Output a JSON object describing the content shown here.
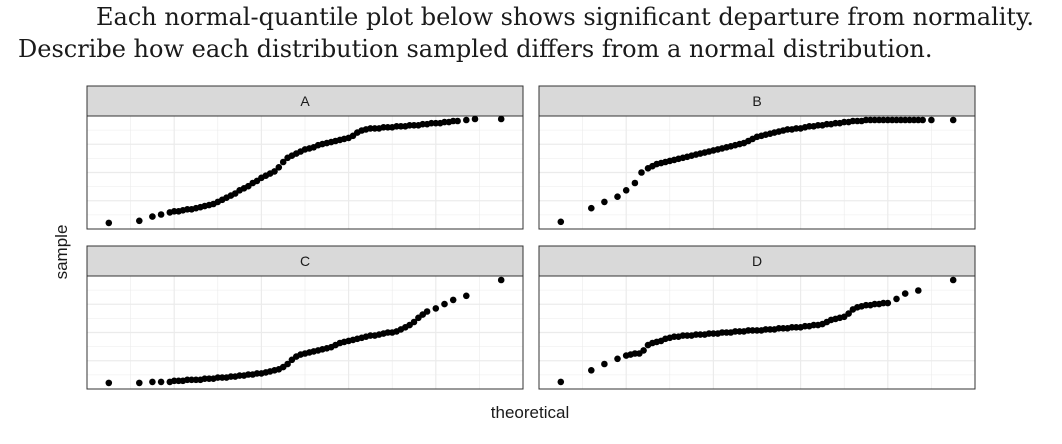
{
  "question": {
    "line1": "Each normal-quantile plot below shows significant departure from normality.",
    "line2": "Describe how each distribution sampled differs from a normal distribution."
  },
  "colors": {
    "point": "#000000",
    "strip_fill": "#d9d9d9",
    "grid": "#ebebeb",
    "frame": "#333333"
  },
  "chart_data": {
    "type": "scatter",
    "facet_layout": "2x2",
    "xlabel": "theoretical",
    "ylabel": "sample",
    "grid": true,
    "xlim": [
      0,
      1
    ],
    "ylim": [
      0,
      1
    ],
    "panels": [
      {
        "title": "A",
        "x": [
          0.05,
          0.12,
          0.15,
          0.17,
          0.19,
          0.2,
          0.21,
          0.22,
          0.23,
          0.24,
          0.25,
          0.26,
          0.27,
          0.28,
          0.29,
          0.3,
          0.31,
          0.32,
          0.33,
          0.34,
          0.35,
          0.36,
          0.37,
          0.38,
          0.39,
          0.4,
          0.41,
          0.42,
          0.43,
          0.44,
          0.45,
          0.46,
          0.47,
          0.48,
          0.49,
          0.5,
          0.51,
          0.52,
          0.53,
          0.54,
          0.55,
          0.56,
          0.57,
          0.58,
          0.59,
          0.6,
          0.61,
          0.62,
          0.63,
          0.64,
          0.65,
          0.66,
          0.67,
          0.68,
          0.69,
          0.7,
          0.71,
          0.72,
          0.73,
          0.74,
          0.75,
          0.76,
          0.77,
          0.78,
          0.79,
          0.8,
          0.81,
          0.82,
          0.83,
          0.84,
          0.85,
          0.87,
          0.89,
          0.95
        ],
        "y": [
          0.02,
          0.04,
          0.08,
          0.1,
          0.12,
          0.13,
          0.13,
          0.14,
          0.15,
          0.15,
          0.16,
          0.17,
          0.18,
          0.19,
          0.2,
          0.22,
          0.24,
          0.26,
          0.28,
          0.3,
          0.33,
          0.35,
          0.37,
          0.4,
          0.42,
          0.45,
          0.47,
          0.49,
          0.51,
          0.55,
          0.6,
          0.64,
          0.66,
          0.68,
          0.7,
          0.72,
          0.73,
          0.74,
          0.76,
          0.77,
          0.78,
          0.79,
          0.8,
          0.81,
          0.82,
          0.83,
          0.85,
          0.88,
          0.9,
          0.91,
          0.92,
          0.92,
          0.92,
          0.93,
          0.93,
          0.93,
          0.94,
          0.94,
          0.94,
          0.95,
          0.95,
          0.95,
          0.96,
          0.96,
          0.97,
          0.97,
          0.97,
          0.98,
          0.98,
          0.99,
          0.99,
          1.0,
          1.01,
          1.01
        ]
      },
      {
        "title": "B",
        "x": [
          0.05,
          0.12,
          0.15,
          0.18,
          0.2,
          0.22,
          0.235,
          0.25,
          0.26,
          0.27,
          0.28,
          0.29,
          0.3,
          0.31,
          0.32,
          0.33,
          0.34,
          0.35,
          0.36,
          0.37,
          0.38,
          0.39,
          0.4,
          0.41,
          0.42,
          0.43,
          0.44,
          0.45,
          0.46,
          0.47,
          0.48,
          0.49,
          0.5,
          0.51,
          0.52,
          0.53,
          0.54,
          0.55,
          0.56,
          0.57,
          0.58,
          0.59,
          0.6,
          0.61,
          0.62,
          0.63,
          0.64,
          0.65,
          0.66,
          0.67,
          0.68,
          0.69,
          0.7,
          0.71,
          0.72,
          0.73,
          0.74,
          0.75,
          0.76,
          0.77,
          0.78,
          0.79,
          0.8,
          0.81,
          0.82,
          0.83,
          0.84,
          0.85,
          0.86,
          0.87,
          0.88,
          0.9,
          0.95
        ],
        "y": [
          0.03,
          0.16,
          0.22,
          0.27,
          0.33,
          0.4,
          0.5,
          0.54,
          0.56,
          0.58,
          0.59,
          0.6,
          0.61,
          0.62,
          0.63,
          0.64,
          0.65,
          0.66,
          0.67,
          0.68,
          0.69,
          0.7,
          0.71,
          0.72,
          0.73,
          0.74,
          0.75,
          0.76,
          0.77,
          0.78,
          0.8,
          0.82,
          0.84,
          0.85,
          0.86,
          0.87,
          0.88,
          0.89,
          0.9,
          0.91,
          0.91,
          0.92,
          0.92,
          0.93,
          0.94,
          0.94,
          0.95,
          0.95,
          0.96,
          0.96,
          0.97,
          0.97,
          0.98,
          0.98,
          0.99,
          0.99,
          0.99,
          1.0,
          1.0,
          1.0,
          1.0,
          1.0,
          1.0,
          1.0,
          1.0,
          1.0,
          1.0,
          1.0,
          1.0,
          1.0,
          1.0,
          1.0,
          1.0
        ]
      },
      {
        "title": "C",
        "x": [
          0.05,
          0.12,
          0.15,
          0.17,
          0.19,
          0.2,
          0.21,
          0.22,
          0.23,
          0.24,
          0.25,
          0.26,
          0.27,
          0.28,
          0.29,
          0.3,
          0.31,
          0.32,
          0.33,
          0.34,
          0.35,
          0.36,
          0.37,
          0.38,
          0.39,
          0.4,
          0.41,
          0.42,
          0.43,
          0.44,
          0.45,
          0.46,
          0.47,
          0.48,
          0.49,
          0.5,
          0.51,
          0.52,
          0.53,
          0.54,
          0.55,
          0.56,
          0.57,
          0.58,
          0.59,
          0.6,
          0.61,
          0.62,
          0.63,
          0.64,
          0.65,
          0.66,
          0.67,
          0.68,
          0.69,
          0.7,
          0.71,
          0.72,
          0.73,
          0.74,
          0.75,
          0.76,
          0.77,
          0.78,
          0.8,
          0.82,
          0.84,
          0.87,
          0.95
        ],
        "y": [
          0.02,
          0.02,
          0.03,
          0.03,
          0.03,
          0.04,
          0.04,
          0.04,
          0.05,
          0.05,
          0.05,
          0.05,
          0.06,
          0.06,
          0.06,
          0.07,
          0.07,
          0.07,
          0.08,
          0.08,
          0.09,
          0.09,
          0.1,
          0.1,
          0.11,
          0.11,
          0.12,
          0.13,
          0.14,
          0.15,
          0.17,
          0.2,
          0.24,
          0.27,
          0.29,
          0.3,
          0.31,
          0.32,
          0.33,
          0.34,
          0.35,
          0.36,
          0.38,
          0.4,
          0.41,
          0.42,
          0.43,
          0.44,
          0.45,
          0.46,
          0.47,
          0.47,
          0.48,
          0.49,
          0.5,
          0.5,
          0.51,
          0.53,
          0.55,
          0.57,
          0.6,
          0.64,
          0.67,
          0.7,
          0.73,
          0.77,
          0.81,
          0.85,
          1.0
        ]
      },
      {
        "title": "D",
        "x": [
          0.05,
          0.12,
          0.15,
          0.18,
          0.2,
          0.21,
          0.22,
          0.23,
          0.24,
          0.25,
          0.26,
          0.27,
          0.28,
          0.29,
          0.3,
          0.31,
          0.32,
          0.33,
          0.34,
          0.35,
          0.36,
          0.37,
          0.38,
          0.39,
          0.4,
          0.41,
          0.42,
          0.43,
          0.44,
          0.45,
          0.46,
          0.47,
          0.48,
          0.49,
          0.5,
          0.51,
          0.52,
          0.53,
          0.54,
          0.55,
          0.56,
          0.57,
          0.58,
          0.59,
          0.6,
          0.61,
          0.62,
          0.63,
          0.64,
          0.65,
          0.66,
          0.67,
          0.68,
          0.69,
          0.7,
          0.71,
          0.72,
          0.73,
          0.74,
          0.75,
          0.76,
          0.77,
          0.78,
          0.79,
          0.8,
          0.82,
          0.84,
          0.87,
          0.95
        ],
        "y": [
          0.03,
          0.14,
          0.2,
          0.25,
          0.28,
          0.29,
          0.3,
          0.3,
          0.33,
          0.38,
          0.4,
          0.41,
          0.42,
          0.44,
          0.45,
          0.46,
          0.46,
          0.47,
          0.47,
          0.47,
          0.48,
          0.48,
          0.48,
          0.49,
          0.49,
          0.49,
          0.5,
          0.5,
          0.5,
          0.51,
          0.51,
          0.51,
          0.52,
          0.52,
          0.52,
          0.52,
          0.53,
          0.53,
          0.53,
          0.54,
          0.54,
          0.54,
          0.55,
          0.55,
          0.55,
          0.56,
          0.56,
          0.57,
          0.57,
          0.58,
          0.6,
          0.62,
          0.63,
          0.64,
          0.65,
          0.68,
          0.72,
          0.74,
          0.75,
          0.76,
          0.76,
          0.77,
          0.77,
          0.78,
          0.78,
          0.82,
          0.87,
          0.9,
          1.0
        ]
      }
    ]
  }
}
